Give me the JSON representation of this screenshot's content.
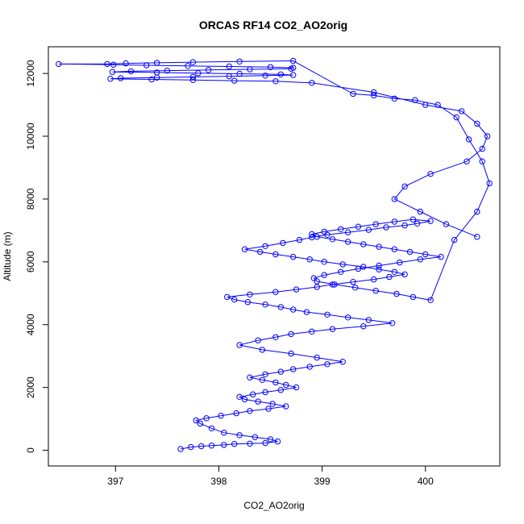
{
  "chart_data": {
    "type": "line",
    "title": "ORCAS RF14 CO2_AO2orig",
    "xlabel": "CO2_AO2orig",
    "ylabel": "Altitude (m)",
    "xlim": [
      396.35,
      400.72
    ],
    "ylim": [
      -500,
      12850
    ],
    "xticks": [
      397,
      398,
      399,
      400
    ],
    "yticks": [
      0,
      2000,
      4000,
      6000,
      8000,
      10000,
      12000
    ],
    "grid": false,
    "legend": "none",
    "colors": {
      "series": "#0000ff",
      "axes": "#000000"
    },
    "marker": "open-circle",
    "series": [
      {
        "x": [
          397.63,
          397.73,
          397.83,
          397.93,
          398.05,
          398.15,
          398.3,
          398.45,
          398.57,
          398.5,
          398.35,
          398.2,
          398.05,
          397.93,
          397.82,
          397.78,
          397.88,
          398.02,
          398.17,
          398.3,
          398.48,
          398.65,
          398.52,
          398.38,
          398.25,
          398.2,
          398.33,
          398.45,
          398.6,
          398.75,
          398.65,
          398.55,
          398.42,
          398.3,
          398.45,
          398.6,
          398.72,
          398.88,
          399.05,
          399.2,
          398.95,
          398.7,
          398.42,
          398.2,
          398.38,
          398.55,
          398.7,
          398.9,
          399.1,
          399.4,
          399.68,
          399.45,
          399.25,
          399.05,
          398.85,
          398.72,
          398.6,
          398.45,
          398.28,
          398.15,
          398.08,
          398.3,
          398.55,
          398.75,
          398.95,
          399.1,
          399.3,
          399.5,
          399.65,
          399.8,
          399.7,
          399.55,
          399.4,
          399.2,
          399.02,
          398.88,
          398.72,
          398.55,
          398.4,
          398.25,
          398.45,
          398.62,
          398.78,
          398.9,
          399.05,
          399.25,
          399.45,
          399.62,
          399.8,
          399.92,
          400.05,
          399.88,
          399.7,
          399.52,
          399.35,
          399.18,
          399.02,
          398.9,
          398.95,
          399.1,
          399.25,
          399.4,
          399.55,
          399.7,
          399.85,
          400.0,
          400.15,
          399.95,
          399.75,
          399.55,
          399.35,
          399.18,
          399.02,
          398.92,
          398.95,
          399.12,
          399.32,
          399.52,
          399.72,
          399.88,
          400.05,
          400.28,
          400.5,
          400.62,
          400.55,
          400.42,
          400.3,
          400.12,
          399.9,
          399.7,
          399.5,
          399.3,
          398.72,
          398.2,
          397.75,
          397.4,
          397.1,
          396.92,
          396.45,
          396.98,
          397.3,
          397.7,
          398.1,
          398.5,
          398.72,
          398.7,
          398.3,
          397.9,
          397.5,
          397.15,
          396.97,
          397.4,
          397.8,
          398.2,
          398.6,
          398.72,
          398.45,
          398.1,
          397.75,
          397.4,
          397.05,
          396.95,
          397.35,
          397.75,
          398.15,
          398.55,
          398.9,
          399.5,
          400.0,
          400.35,
          400.5,
          400.6,
          400.55,
          400.4,
          400.05,
          399.8,
          399.7,
          399.95,
          400.2,
          400.5
        ]
      }
    ],
    "altitudes": [
      40,
      100,
      130,
      150,
      170,
      200,
      210,
      230,
      280,
      350,
      420,
      480,
      560,
      700,
      850,
      950,
      1020,
      1100,
      1180,
      1250,
      1320,
      1400,
      1480,
      1550,
      1620,
      1700,
      1780,
      1850,
      1920,
      2000,
      2080,
      2160,
      2240,
      2320,
      2420,
      2500,
      2580,
      2660,
      2740,
      2820,
      2950,
      3080,
      3200,
      3350,
      3500,
      3600,
      3700,
      3780,
      3860,
      3950,
      4050,
      4150,
      4230,
      4320,
      4400,
      4480,
      4560,
      4640,
      4720,
      4800,
      4880,
      4960,
      5040,
      5120,
      5200,
      5280,
      5360,
      5440,
      5520,
      5600,
      5680,
      5760,
      5840,
      5920,
      6000,
      6080,
      6160,
      6240,
      6320,
      6400,
      6500,
      6600,
      6700,
      6780,
      6860,
      6940,
      7020,
      7100,
      7160,
      7220,
      7300,
      7350,
      7280,
      7200,
      7120,
      7040,
      6960,
      6880,
      6800,
      6720,
      6640,
      6560,
      6480,
      6400,
      6320,
      6240,
      6160,
      6080,
      5980,
      5880,
      5780,
      5680,
      5580,
      5480,
      5380,
      5280,
      5180,
      5080,
      4980,
      4880,
      4780,
      6700,
      7600,
      8500,
      9200,
      9900,
      10600,
      11000,
      11150,
      11200,
      11300,
      11350,
      12400,
      12380,
      12360,
      12340,
      12320,
      12300,
      12300,
      12280,
      12260,
      12240,
      12220,
      12200,
      12180,
      12150,
      12130,
      12110,
      12090,
      12070,
      12050,
      12030,
      12010,
      11990,
      11970,
      11950,
      11930,
      11910,
      11890,
      11870,
      11850,
      11830,
      11810,
      11790,
      11770,
      11750,
      11700,
      11400,
      11000,
      10800,
      10400,
      10000,
      9600,
      9200,
      8800,
      8400,
      8000,
      7600,
      7200,
      6800
    ]
  }
}
